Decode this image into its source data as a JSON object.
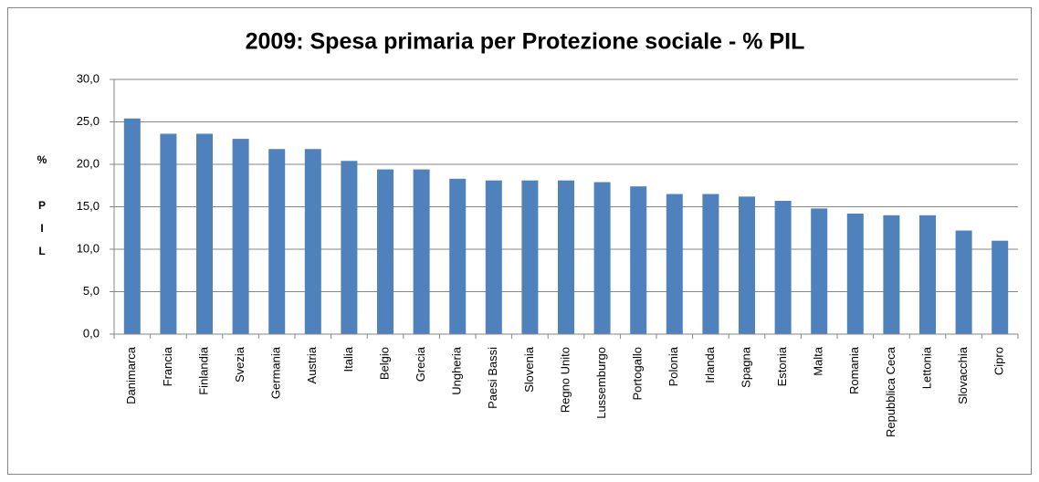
{
  "chart_data": {
    "type": "bar",
    "title": "2009: Spesa primaria per Protezione sociale - % PIL",
    "y_label": "% PIL",
    "categories": [
      "Danimarca",
      "Francia",
      "Finlandia",
      "Svezia",
      "Germania",
      "Austria",
      "Italia",
      "Belgio",
      "Grecia",
      "Ungheria",
      "Paesi Bassi",
      "Slovenia",
      "Regno Unito",
      "Lussemburgo",
      "Portogallo",
      "Polonia",
      "Irlanda",
      "Spagna",
      "Estonia",
      "Malta",
      "Romania",
      "Repubblica Ceca",
      "Lettonia",
      "Slovacchia",
      "Cipro"
    ],
    "values": [
      25.4,
      23.6,
      23.6,
      23.0,
      21.8,
      21.8,
      20.4,
      19.4,
      19.4,
      18.3,
      18.1,
      18.1,
      18.1,
      17.9,
      17.4,
      16.5,
      16.5,
      16.2,
      15.7,
      14.8,
      14.2,
      14.0,
      14.0,
      12.2,
      11.0
    ],
    "color": "#4f81bd",
    "ylim": [
      0,
      30
    ],
    "yticks": [
      {
        "value": 0,
        "label": "0,0"
      },
      {
        "value": 5,
        "label": "5,0"
      },
      {
        "value": 10,
        "label": "10,0"
      },
      {
        "value": 15,
        "label": "15,0"
      },
      {
        "value": 20,
        "label": "20,0"
      },
      {
        "value": 25,
        "label": "25,0"
      },
      {
        "value": 30,
        "label": "30,0"
      }
    ],
    "grid": true
  }
}
